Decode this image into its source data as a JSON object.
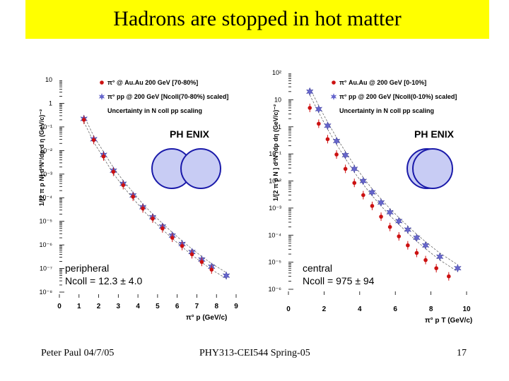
{
  "slide": {
    "title": "Hadrons are stopped in hot matter",
    "footer_left": "Peter Paul 04/7/05",
    "footer_center": "PHY313-CEI544 Spring-05",
    "footer_right": "17"
  },
  "colors": {
    "title_bar": "#ffff00",
    "auau_marker": "#cc1111",
    "pp_marker": "#6666cc",
    "nucleus_fill": "#c8ccf4",
    "nucleus_stroke": "#1a1aaa"
  },
  "chart_data": [
    {
      "type": "scatter",
      "log_y": true,
      "xlabel": "π° p (GeV/c)",
      "ylabel": "1/[2 π p N] d²N°/dp d η (GeV/c)⁻²",
      "x_ticks": [
        "0",
        "1",
        "2",
        "3",
        "4",
        "5",
        "6",
        "7",
        "8",
        "9"
      ],
      "y_ticks": [
        "10",
        "1",
        "10⁻¹",
        "10⁻²",
        "10⁻³",
        "10⁻⁴",
        "10⁻⁵",
        "10⁻⁶",
        "10⁻⁷",
        "10⁻⁸"
      ],
      "xlim": [
        0,
        9
      ],
      "ylim": [
        1e-08,
        10
      ],
      "legend": [
        "π° @ Au.Au 200 GeV [70-80%]",
        "π° pp @ 200 GeV [Ncoll(70-80%) scaled]",
        "Uncertainty in N coll pp scaling"
      ],
      "logo": "PH ENIX",
      "annotation": [
        "peripheral",
        "Ncoll = 12.3 ± 4.0"
      ],
      "series": [
        {
          "name": "π° @ Au.Au 200 GeV [70-80%]",
          "x": [
            1.25,
            1.75,
            2.25,
            2.75,
            3.25,
            3.75,
            4.25,
            4.75,
            5.25,
            5.75,
            6.25,
            6.75,
            7.25,
            7.75
          ],
          "y": [
            0.2,
            0.028,
            0.0056,
            0.00125,
            0.00034,
            0.00011,
            3.5e-05,
            1.3e-05,
            5e-06,
            2e-06,
            9e-07,
            4e-07,
            1.9e-07,
            9e-08
          ]
        },
        {
          "name": "π° pp @ 200 GeV [Ncoll(70-80%) scaled]",
          "x": [
            1.25,
            1.75,
            2.25,
            2.75,
            3.25,
            3.75,
            4.25,
            4.75,
            5.25,
            5.75,
            6.25,
            6.75,
            7.25,
            7.75,
            8.5
          ],
          "y": [
            0.22,
            0.03,
            0.0065,
            0.0014,
            0.00039,
            0.000125,
            4e-05,
            1.5e-05,
            6e-06,
            2.5e-06,
            1.1e-06,
            5e-07,
            2.4e-07,
            1.2e-07,
            5e-08
          ]
        }
      ]
    },
    {
      "type": "scatter",
      "log_y": true,
      "xlabel": "π° p T (GeV/c)",
      "ylabel": "1/[2 π p N ] d²N°/dp dη (GeV/c)⁻²",
      "x_ticks": [
        "0",
        "2",
        "4",
        "6",
        "8",
        "10"
      ],
      "y_ticks": [
        "10²",
        "10",
        "1",
        "10⁻¹",
        "10⁻²",
        "10⁻³",
        "10⁻⁴",
        "10⁻⁵",
        "10⁻⁶"
      ],
      "xlim": [
        0,
        10
      ],
      "ylim": [
        1e-06,
        100
      ],
      "legend": [
        "π° Au.Au @ 200 GeV [0-10%]",
        "π° pp @ 200 GeV [Ncoll(0-10%) scaled]",
        "Uncertainty in N coll pp scaling"
      ],
      "logo": "PH ENIX",
      "annotation": [
        "central",
        "Ncoll = 975 ± 94"
      ],
      "series": [
        {
          "name": "π° Au.Au @ 200 GeV [0-10%]",
          "x": [
            1.2,
            1.7,
            2.2,
            2.7,
            3.2,
            3.7,
            4.2,
            4.7,
            5.2,
            5.7,
            6.2,
            6.7,
            7.2,
            7.7,
            8.3,
            9.0
          ],
          "y": [
            5,
            1.3,
            0.35,
            0.095,
            0.028,
            0.0085,
            0.003,
            0.0012,
            0.00048,
            0.0002,
            9e-05,
            4.2e-05,
            2.2e-05,
            1.2e-05,
            6e-06,
            3e-06
          ]
        },
        {
          "name": "π° pp @ 200 GeV [Ncoll(0-10%) scaled]",
          "x": [
            1.2,
            1.7,
            2.2,
            2.7,
            3.2,
            3.7,
            4.2,
            4.7,
            5.2,
            5.7,
            6.2,
            6.7,
            7.2,
            7.7,
            8.5,
            9.5
          ],
          "y": [
            20,
            4.5,
            1.1,
            0.3,
            0.09,
            0.028,
            0.01,
            0.0038,
            0.0016,
            0.0007,
            0.00033,
            0.00016,
            8e-05,
            4.2e-05,
            1.6e-05,
            6e-06
          ]
        }
      ]
    }
  ]
}
